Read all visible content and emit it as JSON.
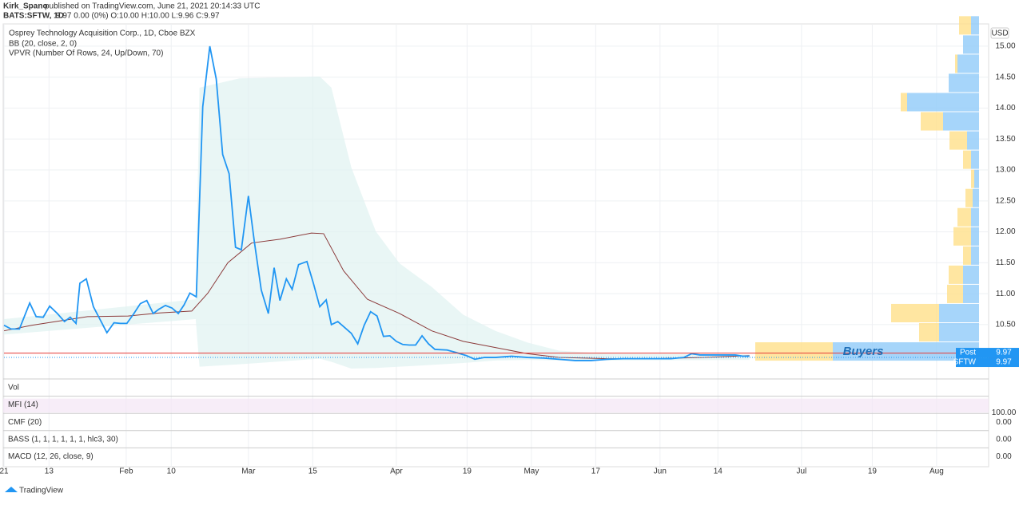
{
  "header": {
    "author": "Kirk_Spano",
    "published": "published on TradingView.com, June 21, 2021 20:14:33 UTC",
    "symbol": "BATS:SFTW, 1D",
    "ohlc": "9.97 0.00 (0%) O:10.00 H:10.00 L:9.96 C:9.97"
  },
  "chart_data": [
    {
      "type": "line",
      "title": "Osprey Technology Acquisition Corp., 1D, Cboe BZX",
      "legend": [
        "BB (20, close, 2, 0)",
        "VPVR (Number Of Rows, 24, Up/Down, 70)"
      ],
      "currency": "USD",
      "annotation": "Buyers",
      "xlim": [
        0,
        151.6
      ],
      "ylim": [
        9.79,
        15.36
      ],
      "xticks": [
        {
          "value": 0,
          "label": "21"
        },
        {
          "value": 7,
          "label": "13"
        },
        {
          "value": 19,
          "label": "Feb"
        },
        {
          "value": 26,
          "label": "10"
        },
        {
          "value": 38,
          "label": "Mar"
        },
        {
          "value": 48,
          "label": "15"
        },
        {
          "value": 61,
          "label": "Apr"
        },
        {
          "value": 72,
          "label": "19"
        },
        {
          "value": 82,
          "label": "May"
        },
        {
          "value": 92,
          "label": "17"
        },
        {
          "value": 102,
          "label": "Jun"
        },
        {
          "value": 111,
          "label": "14"
        },
        {
          "value": 124,
          "label": "Jul"
        },
        {
          "value": 135,
          "label": "19"
        },
        {
          "value": 145,
          "label": "Aug"
        }
      ],
      "yticks": [
        {
          "value": 10.5,
          "label": "10.50"
        },
        {
          "value": 11,
          "label": "11.00"
        },
        {
          "value": 11.5,
          "label": "11.50"
        },
        {
          "value": 12,
          "label": "12.00"
        },
        {
          "value": 12.5,
          "label": "12.50"
        },
        {
          "value": 13,
          "label": "13.00"
        },
        {
          "value": 13.5,
          "label": "13.50"
        },
        {
          "value": 14,
          "label": "14.00"
        },
        {
          "value": 14.5,
          "label": "14.50"
        },
        {
          "value": 15,
          "label": "15.00"
        }
      ],
      "grid": true,
      "band": {
        "color": "#e0f2f1",
        "x": [
          0,
          29.8,
          30.4,
          36.6,
          49.1,
          50.9,
          54.0,
          57.8,
          61.5,
          66.5,
          71.4,
          76.4,
          81.4,
          86.3,
          93.8,
          115.9
        ],
        "upper": [
          10.59,
          10.91,
          14.33,
          14.48,
          14.51,
          14.33,
          13.04,
          12.01,
          11.49,
          11.11,
          10.66,
          10.4,
          10.21,
          10.08,
          10.03,
          10.02
        ],
        "lower": [
          10.34,
          10.59,
          9.82,
          9.86,
          9.95,
          9.9,
          9.79,
          9.8,
          9.82,
          9.85,
          9.88,
          9.92,
          9.93,
          9.92,
          9.92,
          9.93
        ]
      },
      "series": [
        {
          "color": "#8b3a3a",
          "x": [
            0,
            4.3,
            13.0,
            19.3,
            24.2,
            29.2,
            31.7,
            34.8,
            38.5,
            42.9,
            47.8,
            49.7,
            52.8,
            56.5,
            61.5,
            66.5,
            71.4,
            76.4,
            81.4,
            86.3,
            93.8,
            101.2,
            108.7,
            115.9
          ],
          "values": [
            10.4,
            10.49,
            10.63,
            10.64,
            10.69,
            10.72,
            11.01,
            11.5,
            11.82,
            11.88,
            11.98,
            11.97,
            11.37,
            10.91,
            10.68,
            10.4,
            10.23,
            10.13,
            10.03,
            9.97,
            9.95,
            9.95,
            9.97,
            10.0
          ]
        },
        {
          "color": "#2196f3",
          "x": [
            0,
            1.1,
            2.4,
            4.0,
            5.0,
            6.1,
            7.1,
            8.3,
            9.4,
            10.3,
            11.2,
            11.8,
            12.8,
            13.9,
            15.0,
            16.0,
            17.1,
            18.1,
            19.1,
            20.2,
            21.2,
            22.2,
            23.2,
            24.1,
            25.1,
            26.1,
            27.1,
            28.0,
            28.9,
            29.9,
            30.9,
            32.0,
            33.0,
            34.0,
            35.0,
            36.0,
            36.9,
            38.0,
            38.9,
            40.0,
            41.1,
            42.0,
            42.9,
            43.9,
            44.8,
            45.8,
            47.1,
            48.1,
            49.1,
            50.1,
            50.9,
            51.9,
            52.9,
            54.0,
            55.0,
            56.0,
            57.0,
            58.0,
            59.0,
            60.0,
            61.0,
            62.0,
            63.0,
            64.0,
            65.0,
            66.0,
            67.0,
            68.9,
            70.3,
            71.9,
            73.2,
            74.7,
            76.4,
            78.9,
            81.4,
            83.9,
            86.3,
            88.8,
            91.3,
            93.8,
            96.3,
            98.8,
            101.2,
            103.7,
            105.7,
            106.9,
            108.2,
            111.2,
            113.7,
            114.9,
            115.9
          ],
          "values": [
            10.49,
            10.43,
            10.43,
            10.85,
            10.63,
            10.62,
            10.8,
            10.68,
            10.55,
            10.62,
            10.52,
            11.17,
            11.24,
            10.79,
            10.57,
            10.37,
            10.53,
            10.52,
            10.52,
            10.68,
            10.84,
            10.89,
            10.68,
            10.75,
            10.81,
            10.77,
            10.68,
            10.82,
            11.01,
            10.95,
            14.02,
            15.0,
            14.47,
            13.25,
            12.94,
            11.75,
            11.71,
            12.58,
            11.86,
            11.06,
            10.68,
            11.42,
            10.89,
            11.24,
            11.07,
            11.47,
            11.52,
            11.17,
            10.79,
            10.9,
            10.5,
            10.55,
            10.46,
            10.36,
            10.19,
            10.49,
            10.71,
            10.64,
            10.31,
            10.32,
            10.23,
            10.18,
            10.17,
            10.17,
            10.32,
            10.19,
            10.1,
            10.09,
            10.05,
            10.0,
            9.94,
            9.97,
            9.97,
            9.99,
            9.97,
            9.96,
            9.94,
            9.92,
            9.92,
            9.94,
            9.95,
            9.95,
            9.95,
            9.95,
            9.97,
            10.03,
            10.01,
            10.01,
            10.01,
            9.99,
            9.99
          ]
        }
      ],
      "hline": {
        "value": 10.04,
        "color": "#e53935"
      },
      "badges": [
        {
          "name": "Post",
          "value": 9.97
        },
        {
          "name": "SFTW",
          "value": 9.97
        }
      ],
      "panes": [
        {
          "label": "Vol"
        },
        {
          "label": "MFI (14)",
          "tick": "100.00"
        },
        {
          "label": "CMF (20)",
          "tick": "0.00"
        },
        {
          "label": "BASS (1, 1, 1, 1, 1, 1, hlc3, 30)",
          "tick": "0.00"
        },
        {
          "label": "MACD (12, 26, close, 9)",
          "tick": "0.00"
        }
      ]
    },
    {
      "type": "volume-profile",
      "rows": [
        10.06,
        10.37,
        10.68,
        10.99,
        11.3,
        11.61,
        11.92,
        12.23,
        12.54,
        12.85,
        13.16,
        13.47,
        13.78,
        14.09,
        14.4,
        14.71,
        15.02,
        15.33
      ],
      "up": [
        183,
        50,
        50,
        20,
        20,
        10,
        10,
        10,
        8,
        6,
        10,
        15,
        45,
        90,
        38,
        27,
        20,
        10
      ],
      "down": [
        97,
        25,
        60,
        20,
        18,
        10,
        22,
        17,
        9,
        4,
        10,
        22,
        28,
        8,
        0,
        3,
        0,
        15
      ],
      "up_color": "#90caf9",
      "down_color": "#ffe08a"
    }
  ],
  "footer": "TradingView"
}
